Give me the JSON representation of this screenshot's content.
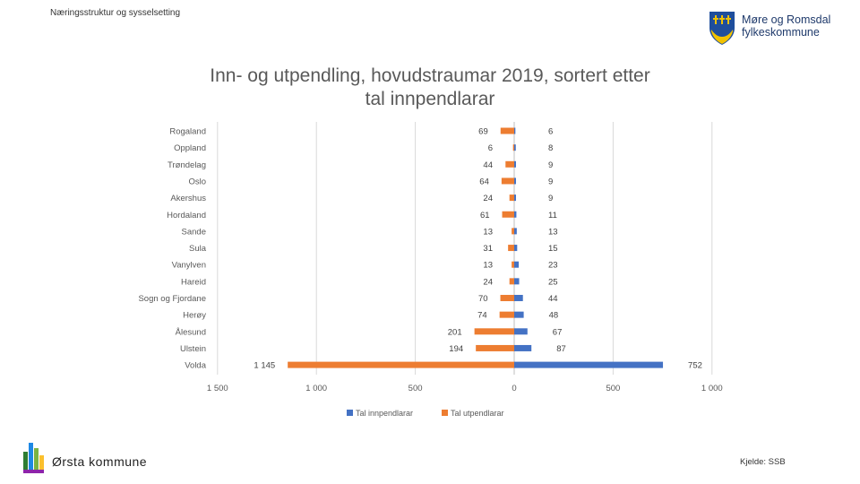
{
  "header": {
    "label": "Næringsstruktur og sysselsetting"
  },
  "logo_right": {
    "line1": "Møre og Romsdal",
    "line2": "fylkeskommune"
  },
  "footer": {
    "municipality": "Ørsta kommune",
    "source": "Kjelde: SSB"
  },
  "colors": {
    "inn": "#4472C4",
    "ut": "#ED7D31",
    "grid": "#D9D9D9",
    "text": "#595959"
  },
  "chart_data": {
    "type": "bar",
    "orientation": "horizontal",
    "title": "Inn- og utpendling, hovudstraumar 2019, sortert etter tal innpendlarar",
    "title_lines": [
      "Inn- og utpendling, hovudstraumar 2019, sortert etter",
      "tal innpendlarar"
    ],
    "categories": [
      "Rogaland",
      "Oppland",
      "Trøndelag",
      "Oslo",
      "Akershus",
      "Hordaland",
      "Sande",
      "Sula",
      "Vanylven",
      "Hareid",
      "Sogn og Fjordane",
      "Herøy",
      "Ålesund",
      "Ulstein",
      "Volda"
    ],
    "series": [
      {
        "name": "Tal innpendlarar",
        "values": [
          6,
          8,
          9,
          9,
          9,
          11,
          13,
          15,
          23,
          25,
          44,
          48,
          67,
          87,
          752
        ],
        "labels": [
          "6",
          "8",
          "9",
          "9",
          "9",
          "11",
          "13",
          "15",
          "23",
          "25",
          "44",
          "48",
          "67",
          "87",
          "752"
        ]
      },
      {
        "name": "Tal utpendlarar",
        "values": [
          -69,
          -6,
          -44,
          -64,
          -24,
          -61,
          -13,
          -31,
          -13,
          -24,
          -70,
          -74,
          -201,
          -194,
          -1145
        ],
        "labels": [
          "69",
          "6",
          "44",
          "64",
          "24",
          "61",
          "13",
          "31",
          "13",
          "24",
          "70",
          "74",
          "201",
          "194",
          "1 145"
        ]
      }
    ],
    "xlim": [
      -1500,
      1000
    ],
    "xticks": [
      -1500,
      -1000,
      -500,
      0,
      500,
      1000
    ],
    "xtick_labels": [
      "1 500",
      "1 000",
      "500",
      "0",
      "500",
      "1 000"
    ],
    "grid": true,
    "legend": "bottom"
  }
}
